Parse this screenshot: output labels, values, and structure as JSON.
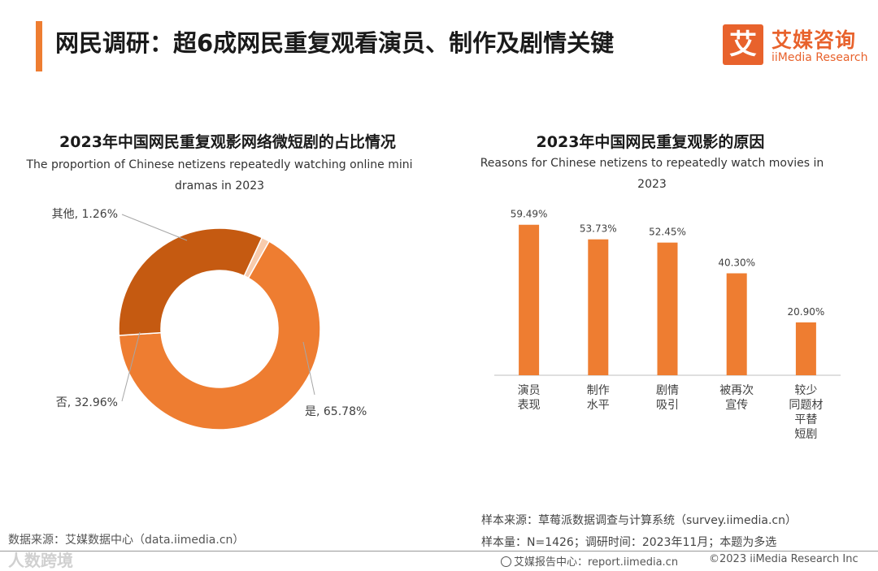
{
  "header": {
    "title": "网民调研：超6成网民重复观看演员、制作及剧情关键",
    "logo_mark": "艾",
    "logo_cn": "艾媒咨询",
    "logo_en": "iiMedia Research"
  },
  "colors": {
    "accent": "#ee7d31",
    "pie_yes": "#ee7d31",
    "pie_no": "#c55a11",
    "pie_other": "#f8cbad",
    "bar": "#ee7d31"
  },
  "chart_data": [
    {
      "type": "pie",
      "style": "donut",
      "title": "2023年中国网民重复观影网络微短剧的占比情况",
      "subtitle": "The proportion of Chinese netizens repeatedly watching online mini dramas in 2023",
      "categories": [
        "是",
        "否",
        "其他"
      ],
      "values": [
        65.78,
        32.96,
        1.26
      ],
      "labels": [
        "是, 65.78%",
        "否, 32.96%",
        "其他, 1.26%"
      ]
    },
    {
      "type": "bar",
      "title": "2023年中国网民重复观影的原因",
      "subtitle": "Reasons for Chinese netizens to repeatedly watch movies in 2023",
      "categories": [
        "演员表现",
        "制作水平",
        "剧情吸引",
        "被再次宣传",
        "较少同题材平替短剧"
      ],
      "category_lines": [
        [
          "演员",
          "表现"
        ],
        [
          "制作",
          "水平"
        ],
        [
          "剧情",
          "吸引"
        ],
        [
          "被再次",
          "宣传"
        ],
        [
          "较少",
          "同题材",
          "平替",
          "短剧"
        ]
      ],
      "values": [
        59.49,
        53.73,
        52.45,
        40.3,
        20.9
      ],
      "value_labels": [
        "59.49%",
        "53.73%",
        "52.45%",
        "40.30%",
        "20.90%"
      ],
      "ylim": [
        0,
        70
      ]
    }
  ],
  "footer": {
    "left_source": "数据来源：艾媒数据中心（data.iimedia.cn）",
    "sample_source": "样本来源：草莓派数据调查与计算系统（survey.iimedia.cn）",
    "sample_size": "样本量：N=1426；调研时间：2023年11月；本题为多选",
    "report_center": "艾媒报告中心：report.iimedia.cn",
    "copyright": "©2023  iiMedia Research  Inc",
    "watermark": "人数跨境"
  }
}
